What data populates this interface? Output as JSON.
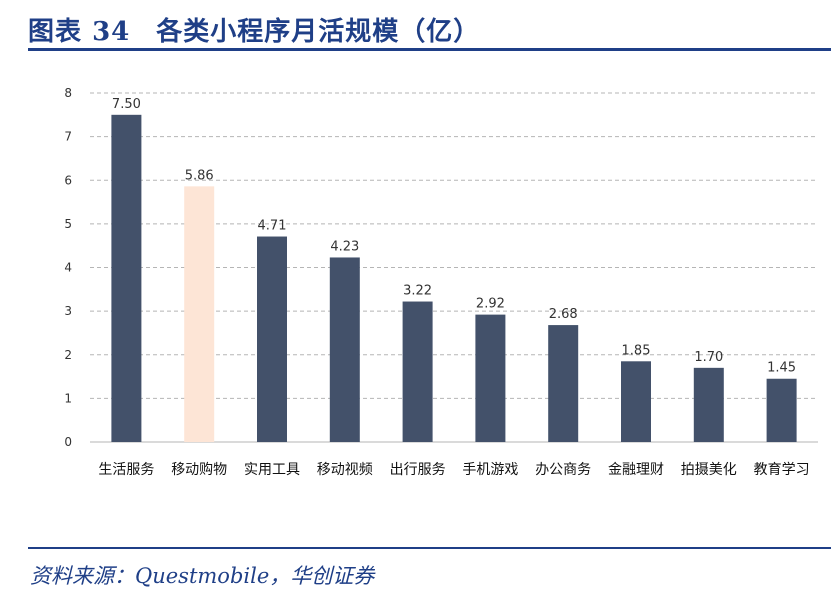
{
  "figure": {
    "label": "图表",
    "number": "34",
    "title": "各类小程序月活规模（亿）"
  },
  "source": "资料来源：Questmobile，华创证券",
  "chart_data": {
    "type": "bar",
    "categories": [
      "生活服务",
      "移动购物",
      "实用工具",
      "移动视频",
      "出行服务",
      "手机游戏",
      "办公商务",
      "金融理财",
      "拍摄美化",
      "教育学习"
    ],
    "values": [
      7.5,
      5.86,
      4.71,
      4.23,
      3.22,
      2.92,
      2.68,
      1.85,
      1.7,
      1.45
    ],
    "value_labels": [
      "7.50",
      "5.86",
      "4.71",
      "4.23",
      "3.22",
      "2.92",
      "2.68",
      "1.85",
      "1.70",
      "1.45"
    ],
    "yticks": [
      "0",
      "1",
      "2",
      "3",
      "4",
      "5",
      "6",
      "7",
      "8"
    ],
    "ylim": [
      0,
      8
    ],
    "grid": true,
    "legend": false,
    "colors": {
      "bar": "#43516a",
      "highlight": "#fde5d6",
      "grid": "#b5b5b5",
      "text": "#333333"
    },
    "highlight_index": 1
  }
}
